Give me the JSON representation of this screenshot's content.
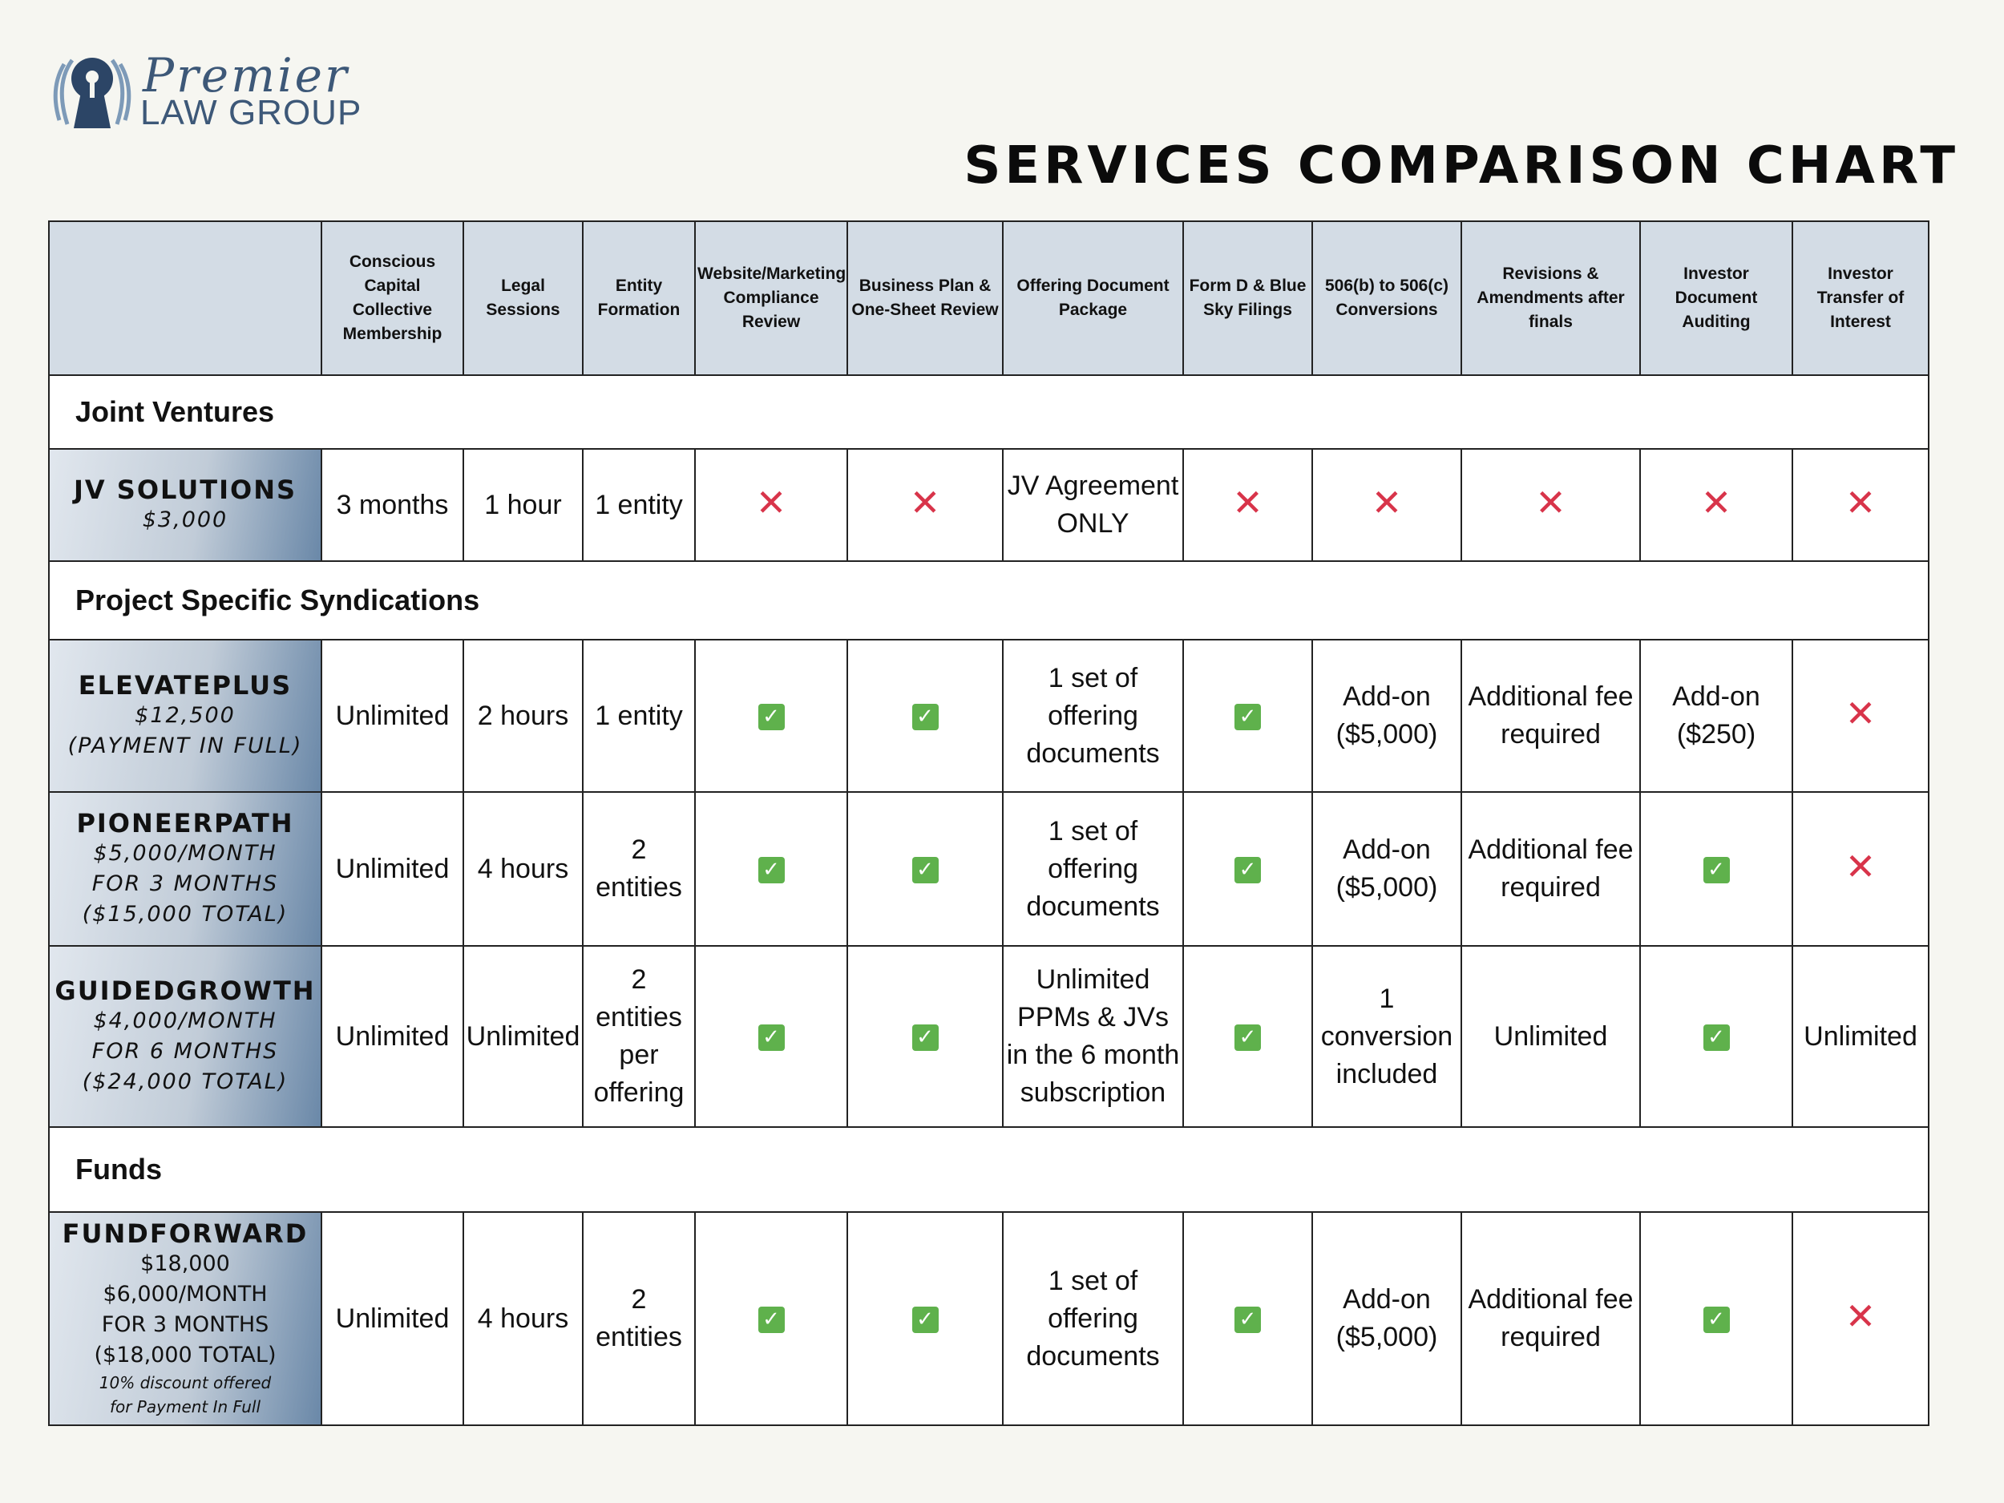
{
  "brand": {
    "script": "Premier",
    "sub": "LAW GROUP"
  },
  "title": "SERVICES COMPARISON CHART",
  "headers": [
    "Conscious Capital Collective Membership",
    "Legal Sessions",
    "Entity Formation",
    "Website/Marketing Compliance Review",
    "Business Plan & One-Sheet Review",
    "Offering Document Package",
    "Form D & Blue Sky Filings",
    "506(b) to 506(c) Conversions",
    "Revisions & Amendments after finals",
    "Investor Document Auditing",
    "Investor Transfer of Interest"
  ],
  "sections": {
    "jv": "Joint Ventures",
    "syndications": "Project Specific Syndications",
    "funds": "Funds"
  },
  "symbols": {
    "check": "✓",
    "cross": "✕"
  },
  "colors": {
    "check": "#5fb14c",
    "cross": "#d8344a",
    "header": "#d3dce5",
    "brand": "#3d5878"
  },
  "plans": {
    "jv": {
      "name": "JV SOLUTIONS",
      "price": "$3,000",
      "cells": [
        "3 months",
        "1 hour",
        "1 entity",
        "x",
        "x",
        "JV Agreement ONLY",
        "x",
        "x",
        "x",
        "x",
        "x"
      ]
    },
    "elevate": {
      "name": "ELEVATEPLUS",
      "price1": "$12,500",
      "price2": "(PAYMENT IN FULL)",
      "cells": [
        "Unlimited",
        "2 hours",
        "1 entity",
        "check",
        "check",
        "1 set of offering documents",
        "check",
        "Add-on ($5,000)",
        "Additional fee required",
        "Add-on ($250)",
        "x"
      ]
    },
    "pioneer": {
      "name": "PIONEERPATH",
      "price1": "$5,000/MONTH",
      "price2": "FOR 3 MONTHS",
      "price3": "($15,000 TOTAL)",
      "cells": [
        "Unlimited",
        "4 hours",
        "2 entities",
        "check",
        "check",
        "1 set of offering documents",
        "check",
        "Add-on ($5,000)",
        "Additional fee required",
        "check",
        "x"
      ]
    },
    "guided": {
      "name": "GUIDEDGROWTH",
      "price1": "$4,000/MONTH",
      "price2": "FOR 6 MONTHS",
      "price3": "($24,000 TOTAL)",
      "cells": [
        "Unlimited",
        "Unlimited",
        "2 entities per offering",
        "check",
        "check",
        "Unlimited PPMs & JVs in the 6 month subscription",
        "check",
        "1 conversion included",
        "Unlimited",
        "check",
        "Unlimited"
      ]
    },
    "fund": {
      "name": "FUNDFORWARD",
      "price1": "$18,000",
      "price2": "$6,000/MONTH",
      "price3": "FOR 3 MONTHS",
      "price4": "($18,000 TOTAL)",
      "note1": "10% discount offered",
      "note2": "for Payment In Full",
      "cells": [
        "Unlimited",
        "4 hours",
        "2 entities",
        "check",
        "check",
        "1 set of offering documents",
        "check",
        "Add-on ($5,000)",
        "Additional fee required",
        "check",
        "x"
      ]
    }
  }
}
